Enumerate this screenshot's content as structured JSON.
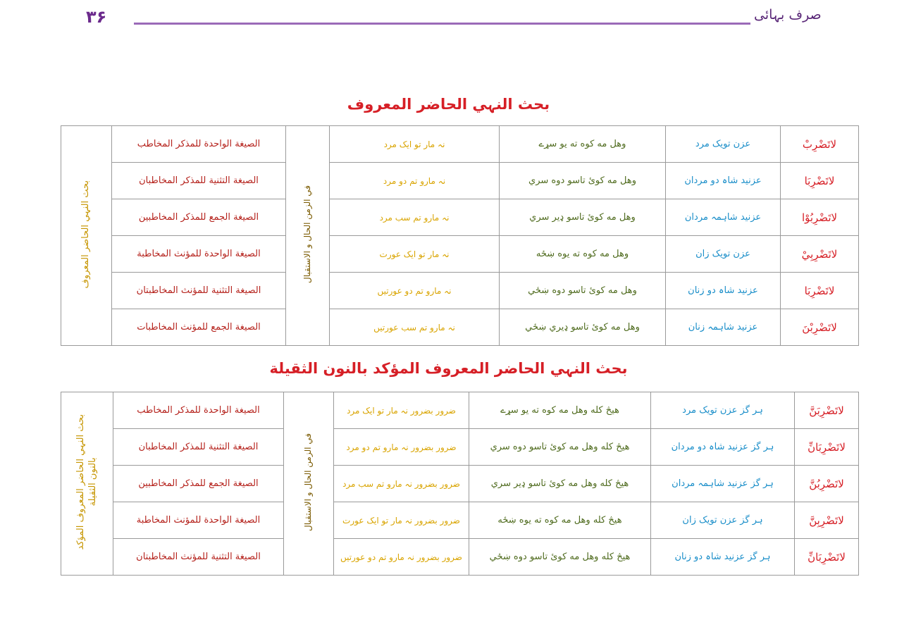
{
  "header": {
    "page_number": "۳۶",
    "book_title": "صرف بہائی"
  },
  "section1": {
    "title": "بحث النہي الحاضر المعروف",
    "side_label": "بحث النہي الحاضر المعروف",
    "time_label": "في الزمن الحال و الاستقبال",
    "rows": [
      {
        "verb": "لاتَضْرِبْ",
        "urdu": "عزن تویک مرد",
        "pashto": "وهل مه کوه ته یو سړے",
        "meaning": "نہ مار تو ایک مرد",
        "sigha": "الصیغة الواحدة للمذکر المخاطب"
      },
      {
        "verb": "لاتَضْرِبَا",
        "urdu": "عزنید شاہ دو مردان",
        "pashto": "وهل مه کوئ تاسو دوه سري",
        "meaning": "نہ مارو تم دو مرد",
        "sigha": "الصیغة التثنیة للمذکر المخاطبان"
      },
      {
        "verb": "لاتَضْرِبُوْا",
        "urdu": "عزنید شاہمہ مردان",
        "pashto": "وهل مه کوئ تاسو ډیر سري",
        "meaning": "نہ مارو تم سب مرد",
        "sigha": "الصیغة الجمع للمذکر المخاطبین"
      },
      {
        "verb": "لاتَضْرِبِيْ",
        "urdu": "عزن تویک زان",
        "pashto": "وهل مه کوه ته یوه ښځه",
        "meaning": "نہ مار تو ایک عورت",
        "sigha": "الصیغة الواحدة للمؤنث المخاطبة"
      },
      {
        "verb": "لاتَضْرِبَا",
        "urdu": "عزنید شاہ دو زنان",
        "pashto": "وهل مه کوئ تاسو دوه ښځي",
        "meaning": "نہ مارو تم دو عورتیں",
        "sigha": "الصیغة التثنیة للمؤنث المخاطبتان"
      },
      {
        "verb": "لاتَضْرِبْنَ",
        "urdu": "عزنید شاہمہ زنان",
        "pashto": "وهل مه کوئ تاسو ډیري ښځي",
        "meaning": "نہ مارو تم سب عورتیں",
        "sigha": "الصیغة الجمع للمؤنث المخاطبات"
      }
    ]
  },
  "section2": {
    "title": "بحث النہي الحاضر المعروف المؤکد بالنون الثقیلة",
    "side_label_line1": "بحث النہي الحاضر المعروف المؤکد",
    "side_label_line2": "بالنون الثقیلة",
    "time_label": "في الزمن الحال و الاستقبال",
    "rows": [
      {
        "verb": "لاتَضْرِبَنَّ",
        "urdu": "ہر گز عزن تویک مرد",
        "pashto": "هیڅ کله وهل مه کوه ته یو سړے",
        "meaning": "ضرور بضرور نہ مار تو ایک مرد",
        "sigha": "الصیغة الواحدة للمذکر المخاطب"
      },
      {
        "verb": "لاتَضْرِبَانِّ",
        "urdu": "ہر گز عزنید شاہ دو مردان",
        "pashto": "هیڅ کله وهل مه کوئ تاسو دوه سري",
        "meaning": "ضرور بضرور نہ مارو تم دو مرد",
        "sigha": "الصیغة التثنیة للمذکر المخاطبان"
      },
      {
        "verb": "لاتَضْرِبُنَّ",
        "urdu": "ہر گز عزنید شاہمہ مردان",
        "pashto": "هیڅ کله وهل مه کوئ تاسو ډیر سري",
        "meaning": "ضرور بضرور نہ مارو تم سب مرد",
        "sigha": "الصیغة الجمع للمذکر المخاطبین"
      },
      {
        "verb": "لاتَضْرِبِنَّ",
        "urdu": "ہر گز عزن تویک زان",
        "pashto": "هیڅ کله وهل مه کوه ته یوه ښځه",
        "meaning": "ضرور بضرور نہ مار تو ایک عورت",
        "sigha": "الصیغة الواحدة للمؤنث المخاطبة"
      },
      {
        "verb": "لاتَضْرِبَانِّ",
        "urdu": "ہر گز عزنید شاہ دو زنان",
        "pashto": "هیڅ کله وهل مه کوئ تاسو دوه ښځي",
        "meaning": "ضرور بضرور نہ مارو تم دو عورتیں",
        "sigha": "الصیغة التثنیة للمؤنث المخاطبتان"
      }
    ]
  },
  "colors": {
    "title_red": "#d61f26",
    "verb_red": "#d61f26",
    "urdu_blue": "#1a8ec9",
    "pashto_green": "#4f6b1e",
    "meaning_gold": "#d9a400",
    "header_purple": "#6b2a8c"
  }
}
